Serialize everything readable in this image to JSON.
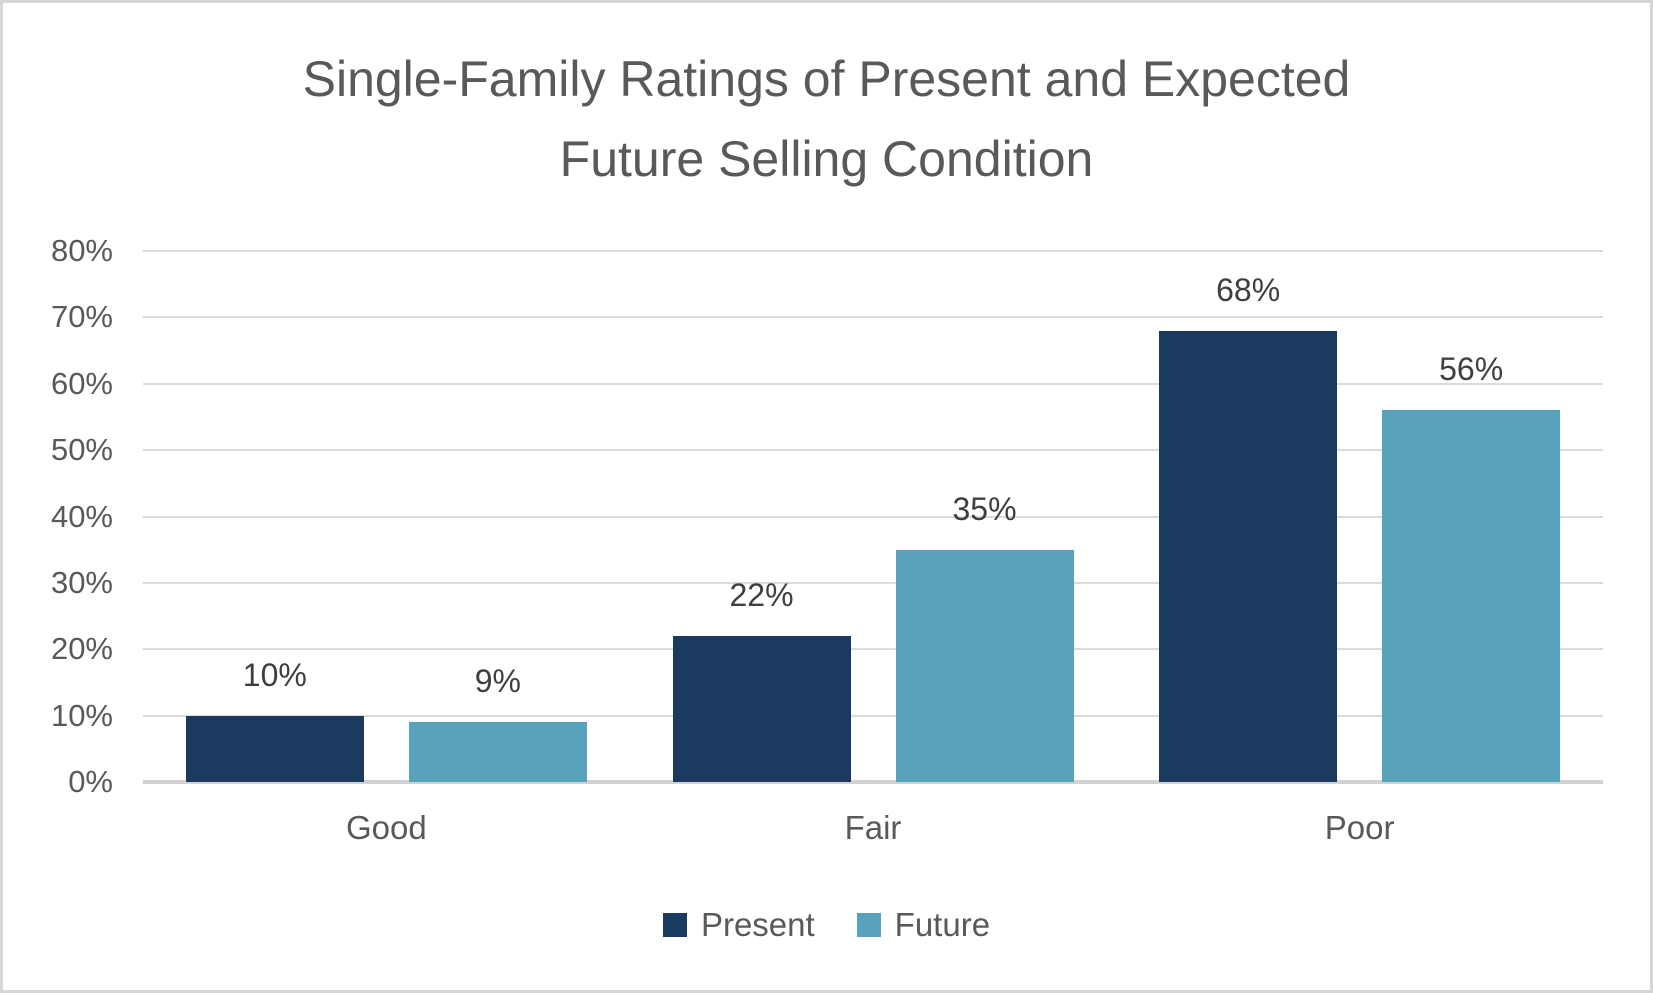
{
  "window": {
    "background": "#FFFFFF",
    "border_color": "#D6D6D6"
  },
  "chart_data": {
    "type": "bar",
    "title": "Single-Family Ratings of Present and Expected Future Selling Condition",
    "title_lines": [
      "Single-Family Ratings of Present and Expected",
      "Future Selling Condition"
    ],
    "categories": [
      "Good",
      "Fair",
      "Poor"
    ],
    "series": [
      {
        "name": "Present",
        "color": "#1B3A5F",
        "values": [
          10,
          22,
          68
        ]
      },
      {
        "name": "Future",
        "color": "#58A2BC",
        "values": [
          9,
          35,
          56
        ]
      }
    ],
    "data_labels": [
      [
        "10%",
        "22%",
        "68%"
      ],
      [
        "9%",
        "35%",
        "56%"
      ]
    ],
    "xlabel": "",
    "ylabel": "",
    "y_axis": {
      "min": 0,
      "max": 80,
      "tick_step": 10,
      "tick_labels": [
        "0%",
        "10%",
        "20%",
        "30%",
        "40%",
        "50%",
        "60%",
        "70%",
        "80%"
      ]
    },
    "grid": true,
    "legend": {
      "position": "bottom",
      "entries": [
        "Present",
        "Future"
      ]
    },
    "styles": {
      "title_color": "#595959",
      "axis_label_color": "#595959",
      "category_label_color": "#595959",
      "data_label_color": "#3F3F3F",
      "legend_text_color": "#595959",
      "gridline_color": "#DBDBDB",
      "axis_line_color": "#D2D2D2"
    }
  }
}
